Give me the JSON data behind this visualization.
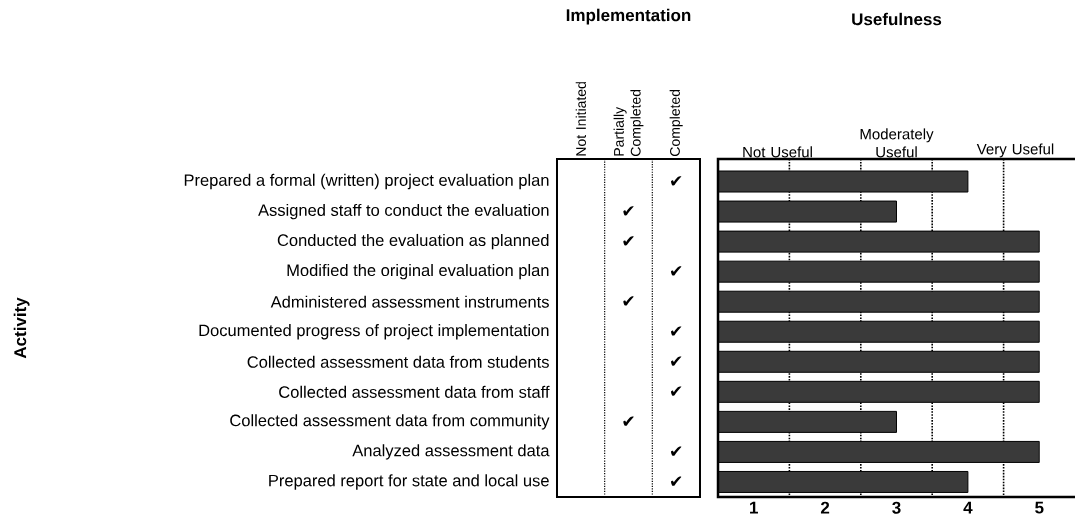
{
  "chart_data": [
    {
      "type": "other",
      "title": "Implementation",
      "ylabel": "Activity",
      "categories": [
        "Not Initiated",
        "Partially Completed",
        "Completed"
      ],
      "y_categories": [
        "Prepared a formal (written) project evaluation plan",
        "Assigned staff to conduct the evaluation",
        "Conducted the evaluation as planned",
        "Modified the original evaluation plan",
        "Administered assessment instruments",
        "Documented progress of project implementation",
        "Collected assessment data from students",
        "Collected assessment data from staff",
        "Collected assessment data from community",
        "Analyzed assessment data",
        "Prepared report for state and local use"
      ],
      "cell_labels": [
        [
          null,
          null,
          "✔"
        ],
        [
          null,
          "✔",
          null
        ],
        [
          null,
          "✔",
          null
        ],
        [
          null,
          null,
          "✔"
        ],
        [
          null,
          "✔",
          null
        ],
        [
          null,
          null,
          "✔"
        ],
        [
          null,
          null,
          "✔"
        ],
        [
          null,
          null,
          "✔"
        ],
        [
          null,
          "✔",
          null
        ],
        [
          null,
          null,
          "✔"
        ],
        [
          null,
          null,
          "✔"
        ]
      ]
    },
    {
      "type": "bar",
      "title": "Usefulness",
      "orientation": "horizontal",
      "categories": [
        null,
        null,
        null,
        null,
        null,
        null,
        null,
        null,
        null,
        null,
        null
      ],
      "values": [
        4,
        3,
        5,
        5,
        5,
        5,
        5,
        5,
        3,
        5,
        4
      ],
      "color": "#3a3a3a",
      "xlim": [
        0.5,
        5.5
      ],
      "xticks": [
        1,
        2,
        3,
        4,
        5
      ],
      "annotations": [
        "Not Useful",
        "Moderately Useful",
        "Very Useful"
      ],
      "tick_labels": "x",
      "ref_lines": [
        {
          "axis": "x",
          "value": 1.5,
          "color": "#000000",
          "line_style": "dotted"
        },
        {
          "axis": "x",
          "value": 2.5,
          "color": "#000000",
          "line_style": "dotted"
        },
        {
          "axis": "x",
          "value": 3.5,
          "color": "#000000",
          "line_style": "dotted"
        },
        {
          "axis": "x",
          "value": 4.5,
          "color": "#000000",
          "line_style": "dotted"
        }
      ]
    }
  ]
}
